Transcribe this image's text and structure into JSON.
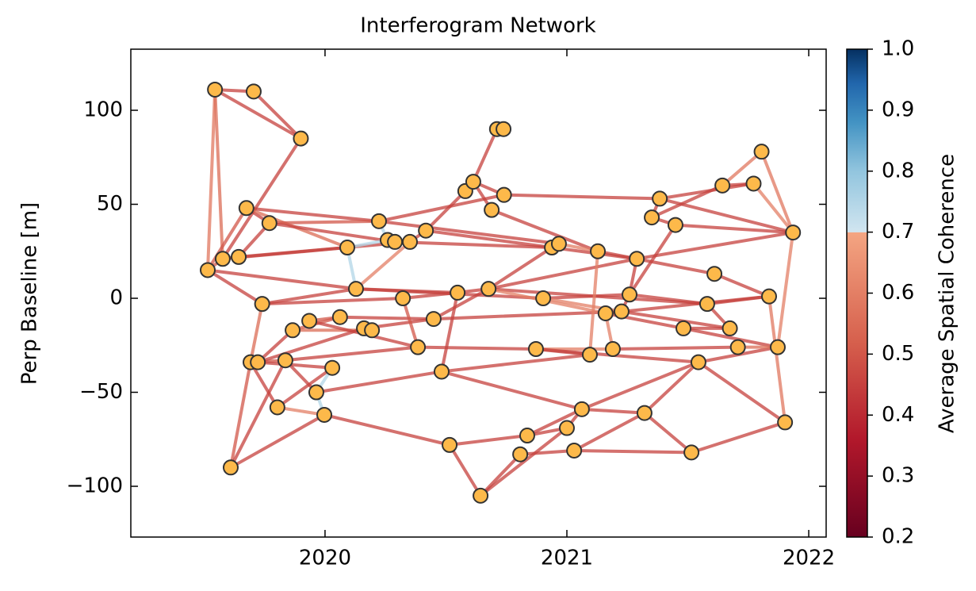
{
  "chart_data": {
    "type": "network",
    "title": "Interferogram Network",
    "ylabel": "Perp Baseline [m]",
    "xlim": [
      2019.197,
      2022.072
    ],
    "xticks": [
      2020,
      2021,
      2022
    ],
    "ylim": [
      -127,
      132.5
    ],
    "yticks": [
      {
        "value": -100,
        "label": "−100"
      },
      {
        "value": -50,
        "label": "−50"
      },
      0,
      50,
      100
    ],
    "node_color": "#fdb94a",
    "x": [
      2019.545,
      2019.705,
      2019.9,
      2019.675,
      2019.77,
      2019.515,
      2019.577,
      2019.643,
      2019.74,
      2019.866,
      2019.935,
      2019.692,
      2019.722,
      2019.836,
      2019.803,
      2019.61,
      2019.964,
      2020.03,
      2019.997,
      2020.092,
      2020.128,
      2020.062,
      2020.161,
      2020.194,
      2020.223,
      2020.259,
      2020.289,
      2020.351,
      2020.417,
      2020.322,
      2020.449,
      2020.384,
      2020.482,
      2020.548,
      2020.515,
      2020.58,
      2020.613,
      2020.711,
      2020.738,
      2020.689,
      2020.74,
      2020.676,
      2020.643,
      2020.807,
      2020.836,
      2020.872,
      2020.902,
      2020.938,
      2020.967,
      2021.0,
      2021.03,
      2021.062,
      2021.095,
      2021.128,
      2021.16,
      2021.226,
      2021.19,
      2021.259,
      2021.289,
      2021.321,
      2021.351,
      2021.384,
      2021.449,
      2021.482,
      2021.515,
      2021.544,
      2021.58,
      2021.61,
      2021.643,
      2021.674,
      2021.707,
      2021.772,
      2021.805,
      2021.836,
      2021.872,
      2021.902,
      2021.935
    ],
    "y": [
      111,
      110,
      85,
      48,
      40,
      15,
      21,
      22,
      -3,
      -17,
      -12,
      -34,
      -34,
      -33,
      -58,
      -90,
      -50,
      -37,
      -62,
      27,
      5,
      -10,
      -16,
      -17,
      41,
      31,
      30,
      30,
      36,
      0,
      -11,
      -26,
      -39,
      3,
      -78,
      57,
      62,
      90,
      90,
      47,
      55,
      5,
      -105,
      -83,
      -73,
      -27,
      0,
      27,
      29,
      -69,
      -81,
      -59,
      -30,
      25,
      -8,
      -7,
      -27,
      2,
      21,
      -61,
      43,
      53,
      39,
      -16,
      -82,
      -34,
      -3,
      13,
      60,
      -16,
      -26,
      61,
      78,
      1,
      -26,
      -66,
      35
    ],
    "edges": [
      {
        "source": 0,
        "target": 1,
        "coherence": 0.45
      },
      {
        "source": 0,
        "target": 2,
        "coherence": 0.45
      },
      {
        "source": 1,
        "target": 2,
        "coherence": 0.45
      },
      {
        "source": 0,
        "target": 5,
        "coherence": 0.58
      },
      {
        "source": 0,
        "target": 6,
        "coherence": 0.55
      },
      {
        "source": 2,
        "target": 6,
        "coherence": 0.45
      },
      {
        "source": 3,
        "target": 5,
        "coherence": 0.5
      },
      {
        "source": 3,
        "target": 4,
        "coherence": 0.45
      },
      {
        "source": 3,
        "target": 24,
        "coherence": 0.45
      },
      {
        "source": 3,
        "target": 19,
        "coherence": 0.55
      },
      {
        "source": 4,
        "target": 24,
        "coherence": 0.5
      },
      {
        "source": 4,
        "target": 26,
        "coherence": 0.45
      },
      {
        "source": 4,
        "target": 7,
        "coherence": 0.45
      },
      {
        "source": 5,
        "target": 20,
        "coherence": 0.45
      },
      {
        "source": 5,
        "target": 6,
        "coherence": 0.5
      },
      {
        "source": 6,
        "target": 19,
        "coherence": 0.45
      },
      {
        "source": 6,
        "target": 7,
        "coherence": 0.5
      },
      {
        "source": 7,
        "target": 27,
        "coherence": 0.45
      },
      {
        "source": 5,
        "target": 8,
        "coherence": 0.45
      },
      {
        "source": 8,
        "target": 11,
        "coherence": 0.55
      },
      {
        "source": 8,
        "target": 20,
        "coherence": 0.45
      },
      {
        "source": 8,
        "target": 29,
        "coherence": 0.45
      },
      {
        "source": 9,
        "target": 12,
        "coherence": 0.45
      },
      {
        "source": 9,
        "target": 21,
        "coherence": 0.5
      },
      {
        "source": 9,
        "target": 23,
        "coherence": 0.55
      },
      {
        "source": 10,
        "target": 21,
        "coherence": 0.5
      },
      {
        "source": 10,
        "target": 31,
        "coherence": 0.45
      },
      {
        "source": 11,
        "target": 13,
        "coherence": 0.5
      },
      {
        "source": 11,
        "target": 15,
        "coherence": 0.5
      },
      {
        "source": 12,
        "target": 17,
        "coherence": 0.45
      },
      {
        "source": 12,
        "target": 22,
        "coherence": 0.45
      },
      {
        "source": 13,
        "target": 16,
        "coherence": 0.45
      },
      {
        "source": 13,
        "target": 31,
        "coherence": 0.45
      },
      {
        "source": 14,
        "target": 11,
        "coherence": 0.45
      },
      {
        "source": 14,
        "target": 18,
        "coherence": 0.6
      },
      {
        "source": 14,
        "target": 17,
        "coherence": 0.45
      },
      {
        "source": 15,
        "target": 18,
        "coherence": 0.45
      },
      {
        "source": 15,
        "target": 13,
        "coherence": 0.45
      },
      {
        "source": 16,
        "target": 17,
        "coherence": 0.75
      },
      {
        "source": 16,
        "target": 18,
        "coherence": 0.75
      },
      {
        "source": 16,
        "target": 32,
        "coherence": 0.45
      },
      {
        "source": 18,
        "target": 34,
        "coherence": 0.45
      },
      {
        "source": 19,
        "target": 25,
        "coherence": 0.75
      },
      {
        "source": 19,
        "target": 20,
        "coherence": 0.75
      },
      {
        "source": 20,
        "target": 27,
        "coherence": 0.6
      },
      {
        "source": 20,
        "target": 33,
        "coherence": 0.45
      },
      {
        "source": 20,
        "target": 46,
        "coherence": 0.45
      },
      {
        "source": 21,
        "target": 30,
        "coherence": 0.45
      },
      {
        "source": 22,
        "target": 30,
        "coherence": 0.45
      },
      {
        "source": 24,
        "target": 25,
        "coherence": 0.75
      },
      {
        "source": 24,
        "target": 40,
        "coherence": 0.45
      },
      {
        "source": 24,
        "target": 48,
        "coherence": 0.45
      },
      {
        "source": 25,
        "target": 27,
        "coherence": 0.5
      },
      {
        "source": 26,
        "target": 47,
        "coherence": 0.45
      },
      {
        "source": 27,
        "target": 28,
        "coherence": 0.45
      },
      {
        "source": 28,
        "target": 35,
        "coherence": 0.45
      },
      {
        "source": 28,
        "target": 47,
        "coherence": 0.45
      },
      {
        "source": 29,
        "target": 31,
        "coherence": 0.5
      },
      {
        "source": 29,
        "target": 33,
        "coherence": 0.45
      },
      {
        "source": 30,
        "target": 41,
        "coherence": 0.45
      },
      {
        "source": 30,
        "target": 55,
        "coherence": 0.45
      },
      {
        "source": 31,
        "target": 45,
        "coherence": 0.45
      },
      {
        "source": 32,
        "target": 33,
        "coherence": 0.45
      },
      {
        "source": 32,
        "target": 52,
        "coherence": 0.45
      },
      {
        "source": 32,
        "target": 51,
        "coherence": 0.45
      },
      {
        "source": 33,
        "target": 41,
        "coherence": 0.45
      },
      {
        "source": 34,
        "target": 42,
        "coherence": 0.45
      },
      {
        "source": 34,
        "target": 44,
        "coherence": 0.45
      },
      {
        "source": 35,
        "target": 36,
        "coherence": 0.45
      },
      {
        "source": 36,
        "target": 37,
        "coherence": 0.45
      },
      {
        "source": 36,
        "target": 39,
        "coherence": 0.45
      },
      {
        "source": 36,
        "target": 40,
        "coherence": 0.45
      },
      {
        "source": 37,
        "target": 38,
        "coherence": 0.45
      },
      {
        "source": 39,
        "target": 53,
        "coherence": 0.45
      },
      {
        "source": 40,
        "target": 61,
        "coherence": 0.45
      },
      {
        "source": 41,
        "target": 47,
        "coherence": 0.45
      },
      {
        "source": 41,
        "target": 58,
        "coherence": 0.45
      },
      {
        "source": 41,
        "target": 66,
        "coherence": 0.45
      },
      {
        "source": 41,
        "target": 54,
        "coherence": 0.6
      },
      {
        "source": 42,
        "target": 43,
        "coherence": 0.45
      },
      {
        "source": 42,
        "target": 49,
        "coherence": 0.45
      },
      {
        "source": 43,
        "target": 50,
        "coherence": 0.45
      },
      {
        "source": 44,
        "target": 49,
        "coherence": 0.45
      },
      {
        "source": 44,
        "target": 51,
        "coherence": 0.45
      },
      {
        "source": 45,
        "target": 52,
        "coherence": 0.45
      },
      {
        "source": 45,
        "target": 56,
        "coherence": 0.6
      },
      {
        "source": 45,
        "target": 65,
        "coherence": 0.45
      },
      {
        "source": 46,
        "target": 57,
        "coherence": 0.45
      },
      {
        "source": 46,
        "target": 55,
        "coherence": 0.6
      },
      {
        "source": 47,
        "target": 48,
        "coherence": 0.75
      },
      {
        "source": 47,
        "target": 58,
        "coherence": 0.45
      },
      {
        "source": 48,
        "target": 53,
        "coherence": 0.6
      },
      {
        "source": 49,
        "target": 51,
        "coherence": 0.45
      },
      {
        "source": 50,
        "target": 64,
        "coherence": 0.45
      },
      {
        "source": 50,
        "target": 59,
        "coherence": 0.45
      },
      {
        "source": 51,
        "target": 59,
        "coherence": 0.45
      },
      {
        "source": 51,
        "target": 65,
        "coherence": 0.45
      },
      {
        "source": 52,
        "target": 53,
        "coherence": 0.6
      },
      {
        "source": 53,
        "target": 67,
        "coherence": 0.45
      },
      {
        "source": 54,
        "target": 56,
        "coherence": 0.6
      },
      {
        "source": 54,
        "target": 63,
        "coherence": 0.45
      },
      {
        "source": 54,
        "target": 73,
        "coherence": 0.45
      },
      {
        "source": 55,
        "target": 69,
        "coherence": 0.45
      },
      {
        "source": 55,
        "target": 57,
        "coherence": 0.45
      },
      {
        "source": 56,
        "target": 70,
        "coherence": 0.45
      },
      {
        "source": 57,
        "target": 66,
        "coherence": 0.45
      },
      {
        "source": 57,
        "target": 58,
        "coherence": 0.45
      },
      {
        "source": 57,
        "target": 62,
        "coherence": 0.45
      },
      {
        "source": 58,
        "target": 76,
        "coherence": 0.45
      },
      {
        "source": 59,
        "target": 64,
        "coherence": 0.45
      },
      {
        "source": 59,
        "target": 65,
        "coherence": 0.45
      },
      {
        "source": 60,
        "target": 61,
        "coherence": 0.45
      },
      {
        "source": 60,
        "target": 62,
        "coherence": 0.45
      },
      {
        "source": 60,
        "target": 68,
        "coherence": 0.45
      },
      {
        "source": 61,
        "target": 71,
        "coherence": 0.45
      },
      {
        "source": 61,
        "target": 76,
        "coherence": 0.45
      },
      {
        "source": 62,
        "target": 76,
        "coherence": 0.45
      },
      {
        "source": 63,
        "target": 69,
        "coherence": 0.45
      },
      {
        "source": 63,
        "target": 74,
        "coherence": 0.45
      },
      {
        "source": 64,
        "target": 75,
        "coherence": 0.45
      },
      {
        "source": 65,
        "target": 74,
        "coherence": 0.45
      },
      {
        "source": 66,
        "target": 73,
        "coherence": 0.45
      },
      {
        "source": 67,
        "target": 73,
        "coherence": 0.45
      },
      {
        "source": 68,
        "target": 71,
        "coherence": 0.45
      },
      {
        "source": 68,
        "target": 72,
        "coherence": 0.58
      },
      {
        "source": 71,
        "target": 76,
        "coherence": 0.6
      },
      {
        "source": 72,
        "target": 76,
        "coherence": 0.58
      },
      {
        "source": 73,
        "target": 75,
        "coherence": 0.58
      },
      {
        "source": 74,
        "target": 76,
        "coherence": 0.6
      },
      {
        "source": 65,
        "target": 75,
        "coherence": 0.45
      },
      {
        "source": 70,
        "target": 74,
        "coherence": 0.55
      },
      {
        "source": 66,
        "target": 69,
        "coherence": 0.45
      }
    ],
    "colorbar": {
      "label": "Average Spatial Coherence",
      "lim": [
        0.2,
        1.0
      ],
      "ticks": [
        0.2,
        0.3,
        0.4,
        0.5,
        0.6,
        0.7,
        0.8,
        0.9,
        {
          "value": 1.0,
          "label": "1.0"
        }
      ]
    }
  }
}
